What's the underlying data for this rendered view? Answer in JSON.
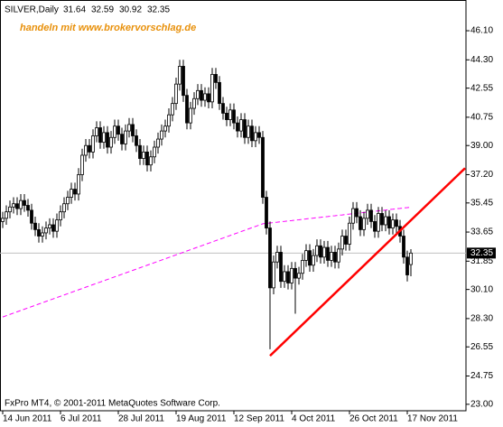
{
  "chart_data": {
    "type": "candlestick",
    "symbol": "SILVER,Daily",
    "watermark": "handeln mit www.brokervorschlag.de",
    "footer": "FxPro MT4, © 2001-2011 MetaQuotes Software Corp.",
    "categories": [
      "14 Jun 2011",
      null,
      null,
      null,
      null,
      null,
      null,
      null,
      null,
      null,
      null,
      null,
      null,
      null,
      null,
      null,
      "6 Jul 2011",
      null,
      null,
      null,
      null,
      null,
      null,
      null,
      null,
      null,
      null,
      null,
      null,
      null,
      null,
      null,
      "28 Jul 2011",
      null,
      null,
      null,
      null,
      null,
      null,
      null,
      null,
      null,
      null,
      null,
      null,
      null,
      null,
      null,
      "19 Aug 2011",
      null,
      null,
      null,
      null,
      null,
      null,
      null,
      null,
      null,
      null,
      null,
      null,
      null,
      null,
      null,
      "12 Sep 2011",
      null,
      null,
      null,
      null,
      null,
      null,
      null,
      null,
      null,
      null,
      null,
      null,
      null,
      null,
      null,
      "4 Oct 2011",
      null,
      null,
      null,
      null,
      null,
      null,
      null,
      null,
      null,
      null,
      null,
      null,
      null,
      null,
      null,
      "26 Oct 2011",
      null,
      null,
      null,
      null,
      null,
      null,
      null,
      null,
      null,
      null,
      null,
      null,
      null,
      null,
      null,
      "17 Nov 2011",
      null
    ],
    "open": [
      34.3,
      34.5,
      34.9,
      35.2,
      35.4,
      35.1,
      35.6,
      35.3,
      35.0,
      34.2,
      33.8,
      33.4,
      33.6,
      33.9,
      34.1,
      33.7,
      34.4,
      34.9,
      35.4,
      35.8,
      36.3,
      36.0,
      37.2,
      38.4,
      39.0,
      38.6,
      39.6,
      40.1,
      39.2,
      39.8,
      38.9,
      39.5,
      40.2,
      39.7,
      39.1,
      39.9,
      40.3,
      39.6,
      39.0,
      38.2,
      38.6,
      37.8,
      38.3,
      38.9,
      39.4,
      39.9,
      40.2,
      40.9,
      41.6,
      42.8,
      43.9,
      42.1,
      40.4,
      41.3,
      41.9,
      42.4,
      41.8,
      42.2,
      41.7,
      43.4,
      42.9,
      41.6,
      41.0,
      40.6,
      41.2,
      40.4,
      39.9,
      40.6,
      39.5,
      40.2,
      39.3,
      39.8,
      39.5,
      35.8,
      33.9,
      30.2,
      31.8,
      32.4,
      30.6,
      31.2,
      30.5,
      31.4,
      30.8,
      31.1,
      31.9,
      32.5,
      31.6,
      32.2,
      32.8,
      32.1,
      32.7,
      31.9,
      32.4,
      31.8,
      32.6,
      33.4,
      32.9,
      34.2,
      35.1,
      34.6,
      33.8,
      34.5,
      35.0,
      34.3,
      33.7,
      34.8,
      34.1,
      34.6,
      33.9,
      34.4,
      34.0,
      33.4,
      32.1,
      31.64
    ],
    "high": [
      34.9,
      35.3,
      35.6,
      35.8,
      35.8,
      36.0,
      36.0,
      35.7,
      35.4,
      34.6,
      34.2,
      34.0,
      34.3,
      34.5,
      34.5,
      34.8,
      35.3,
      35.8,
      36.2,
      36.7,
      36.7,
      37.6,
      38.8,
      39.4,
      39.4,
      40.0,
      40.5,
      40.5,
      40.2,
      40.2,
      39.9,
      40.6,
      40.6,
      40.1,
      40.3,
      40.7,
      40.7,
      40.0,
      39.4,
      39.0,
      39.0,
      38.7,
      39.3,
      39.8,
      40.3,
      40.6,
      41.3,
      42.0,
      43.2,
      44.3,
      44.3,
      42.5,
      41.7,
      42.3,
      42.8,
      42.8,
      42.6,
      42.6,
      43.8,
      43.8,
      43.3,
      42.0,
      41.4,
      41.6,
      41.6,
      40.8,
      41.0,
      41.0,
      40.6,
      40.6,
      40.2,
      40.2,
      39.9,
      36.2,
      34.3,
      32.2,
      32.8,
      32.8,
      31.6,
      31.6,
      31.8,
      31.8,
      31.5,
      32.3,
      32.9,
      32.9,
      32.6,
      33.2,
      33.2,
      33.1,
      33.1,
      32.8,
      32.8,
      33.0,
      33.8,
      33.8,
      34.6,
      35.5,
      35.5,
      35.0,
      34.9,
      35.4,
      35.4,
      34.7,
      35.2,
      35.2,
      35.0,
      35.0,
      34.8,
      34.8,
      34.4,
      33.8,
      32.5,
      32.59
    ],
    "low": [
      33.9,
      34.1,
      34.5,
      34.8,
      34.7,
      34.7,
      34.9,
      34.6,
      33.8,
      33.4,
      33.0,
      33.0,
      33.2,
      33.5,
      33.3,
      33.3,
      34.0,
      34.5,
      35.0,
      35.4,
      35.6,
      35.6,
      36.8,
      38.0,
      38.2,
      38.2,
      39.2,
      38.8,
      38.8,
      38.5,
      38.5,
      39.1,
      39.3,
      38.7,
      38.7,
      39.5,
      39.2,
      38.6,
      37.8,
      37.8,
      37.4,
      37.4,
      37.9,
      38.5,
      39.0,
      39.5,
      39.8,
      40.5,
      41.2,
      42.4,
      41.7,
      40.0,
      40.0,
      40.9,
      41.5,
      41.4,
      41.4,
      41.3,
      41.3,
      42.5,
      41.2,
      40.6,
      40.2,
      40.2,
      40.0,
      39.5,
      39.5,
      39.1,
      39.1,
      38.9,
      38.9,
      39.1,
      35.4,
      33.5,
      26.4,
      29.8,
      31.4,
      30.2,
      30.2,
      30.1,
      30.1,
      28.6,
      30.4,
      30.7,
      31.5,
      31.2,
      31.2,
      31.8,
      31.7,
      31.7,
      31.5,
      31.5,
      31.4,
      31.4,
      32.2,
      32.5,
      32.5,
      33.8,
      34.2,
      33.4,
      33.4,
      34.1,
      33.9,
      33.3,
      33.3,
      33.7,
      33.7,
      33.5,
      33.5,
      33.6,
      33.0,
      31.7,
      30.6,
      30.92
    ],
    "close": [
      34.5,
      34.9,
      35.2,
      35.4,
      35.1,
      35.6,
      35.3,
      35.0,
      34.2,
      33.8,
      33.4,
      33.6,
      33.9,
      34.1,
      33.7,
      34.4,
      34.9,
      35.4,
      35.8,
      36.3,
      36.0,
      37.2,
      38.4,
      39.0,
      38.6,
      39.6,
      40.1,
      39.2,
      39.8,
      38.9,
      39.5,
      40.2,
      39.7,
      39.1,
      39.9,
      40.3,
      39.6,
      39.0,
      38.2,
      38.6,
      37.8,
      38.3,
      38.9,
      39.4,
      39.9,
      40.2,
      40.9,
      41.6,
      42.8,
      43.9,
      42.1,
      40.4,
      41.3,
      41.9,
      42.4,
      41.8,
      42.2,
      41.7,
      43.4,
      42.9,
      41.6,
      41.0,
      40.6,
      41.2,
      40.4,
      39.9,
      40.6,
      39.5,
      40.2,
      39.3,
      39.8,
      39.5,
      35.8,
      33.9,
      30.2,
      31.8,
      32.4,
      30.6,
      31.2,
      30.5,
      31.4,
      30.8,
      31.1,
      31.9,
      32.5,
      31.6,
      32.2,
      32.8,
      32.1,
      32.7,
      31.9,
      32.4,
      31.8,
      32.6,
      33.4,
      32.9,
      34.2,
      35.1,
      34.6,
      33.8,
      34.5,
      35.0,
      34.3,
      33.7,
      34.8,
      34.1,
      34.6,
      33.9,
      34.4,
      34.0,
      33.4,
      32.1,
      31.0,
      32.35
    ],
    "bull_color": "#ffffff",
    "bear_color": "#000000",
    "ma": {
      "color": "#ff00ff",
      "values": [
        28.4,
        28.48,
        28.56,
        28.64,
        28.72,
        28.8,
        28.88,
        28.96,
        29.04,
        29.12,
        29.2,
        29.28,
        29.36,
        29.44,
        29.52,
        29.6,
        29.68,
        29.76,
        29.84,
        29.92,
        30.0,
        30.08,
        30.16,
        30.24,
        30.32,
        30.4,
        30.48,
        30.56,
        30.64,
        30.72,
        30.8,
        30.88,
        30.96,
        31.04,
        31.12,
        31.2,
        31.28,
        31.36,
        31.44,
        31.52,
        31.6,
        31.68,
        31.76,
        31.84,
        31.92,
        32.0,
        32.08,
        32.16,
        32.24,
        32.32,
        32.4,
        32.48,
        32.56,
        32.64,
        32.72,
        32.8,
        32.88,
        32.96,
        33.04,
        33.12,
        33.2,
        33.28,
        33.36,
        33.44,
        33.52,
        33.6,
        33.68,
        33.76,
        33.84,
        33.92,
        34.0,
        34.08,
        34.16,
        34.19,
        34.21,
        34.24,
        34.26,
        34.29,
        34.31,
        34.34,
        34.36,
        34.39,
        34.41,
        34.44,
        34.46,
        34.49,
        34.51,
        34.54,
        34.56,
        34.59,
        34.61,
        34.64,
        34.66,
        34.69,
        34.71,
        34.74,
        34.76,
        34.79,
        34.81,
        34.84,
        34.86,
        34.89,
        34.91,
        34.94,
        34.96,
        34.99,
        35.01,
        35.04,
        35.06,
        35.09,
        35.11,
        35.14,
        35.16,
        35.19
      ]
    },
    "trendline": {
      "color": "#ff0000",
      "start": [
        74,
        26.0
      ],
      "end": [
        128,
        37.6
      ]
    },
    "ylim": [
      22.6,
      48.0
    ],
    "yticks": [
      {
        "value": 46.1,
        "label": "46.10"
      },
      {
        "value": 44.3,
        "label": "44.30"
      },
      42.55,
      {
        "value": 40.75,
        "label": "40.75"
      },
      {
        "value": 39.0,
        "label": "39.00"
      },
      {
        "value": 37.2,
        "label": "37.20"
      },
      35.45,
      33.65,
      31.85,
      {
        "value": 30.1,
        "label": "30.10"
      },
      {
        "value": 28.3,
        "label": "28.30"
      },
      26.55,
      24.75,
      {
        "value": 23.0,
        "label": "23.00"
      }
    ]
  }
}
